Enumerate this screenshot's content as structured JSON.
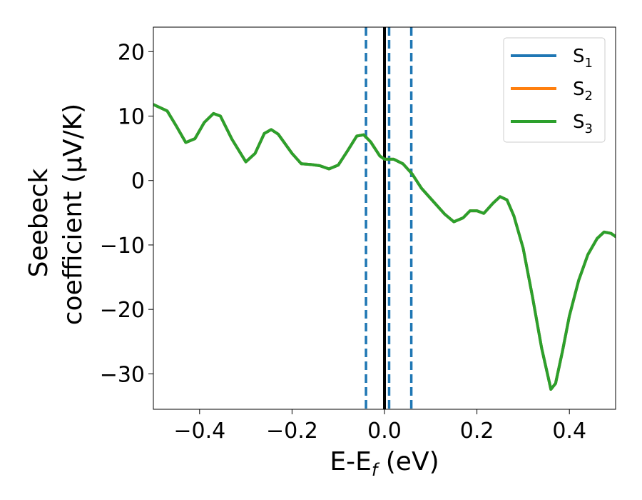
{
  "chart_data": {
    "type": "line",
    "title": "",
    "xlabel": {
      "main": "E-E",
      "sub": "f",
      "unit": " (eV)"
    },
    "ylabel": {
      "line1": "Seebeck",
      "line2": "coefficient  (μV/K)"
    },
    "xlim": [
      -0.5,
      0.5
    ],
    "ylim": [
      -35.5,
      23.8
    ],
    "xticks": [
      -0.4,
      -0.2,
      0.0,
      0.2,
      0.4
    ],
    "xtick_labels": [
      "−0.4",
      "−0.2",
      "0.0",
      "0.2",
      "0.4"
    ],
    "yticks": [
      20,
      10,
      0,
      -10,
      -20,
      -30
    ],
    "ytick_labels": [
      "20",
      "10",
      "0",
      "−10",
      "−20",
      "−30"
    ],
    "legend_position": "top-right",
    "grid": false,
    "series": [
      {
        "name": "S",
        "sub": "1",
        "color": "#1f77b4",
        "points": [
          [
            -0.5,
            11.8
          ],
          [
            -0.47,
            10.8
          ],
          [
            -0.45,
            8.4
          ],
          [
            -0.43,
            5.9
          ],
          [
            -0.41,
            6.5
          ],
          [
            -0.39,
            9.0
          ],
          [
            -0.37,
            10.4
          ],
          [
            -0.355,
            10.0
          ],
          [
            -0.33,
            6.4
          ],
          [
            -0.3,
            2.9
          ],
          [
            -0.28,
            4.2
          ],
          [
            -0.26,
            7.3
          ],
          [
            -0.245,
            7.9
          ],
          [
            -0.23,
            7.2
          ],
          [
            -0.2,
            4.2
          ],
          [
            -0.18,
            2.6
          ],
          [
            -0.16,
            2.5
          ],
          [
            -0.14,
            2.3
          ],
          [
            -0.12,
            1.8
          ],
          [
            -0.1,
            2.4
          ],
          [
            -0.08,
            4.6
          ],
          [
            -0.06,
            6.9
          ],
          [
            -0.045,
            7.1
          ],
          [
            -0.03,
            6.0
          ],
          [
            -0.01,
            3.8
          ],
          [
            0.0,
            3.3
          ],
          [
            0.02,
            3.3
          ],
          [
            0.04,
            2.6
          ],
          [
            0.06,
            1.0
          ],
          [
            0.08,
            -1.2
          ],
          [
            0.1,
            -2.8
          ],
          [
            0.13,
            -5.2
          ],
          [
            0.15,
            -6.4
          ],
          [
            0.17,
            -5.8
          ],
          [
            0.185,
            -4.7
          ],
          [
            0.2,
            -4.7
          ],
          [
            0.215,
            -5.1
          ],
          [
            0.235,
            -3.5
          ],
          [
            0.25,
            -2.5
          ],
          [
            0.265,
            -3.0
          ],
          [
            0.28,
            -5.5
          ],
          [
            0.3,
            -10.5
          ],
          [
            0.32,
            -18.0
          ],
          [
            0.34,
            -26.0
          ],
          [
            0.36,
            -32.4
          ],
          [
            0.37,
            -31.5
          ],
          [
            0.385,
            -26.5
          ],
          [
            0.4,
            -21.0
          ],
          [
            0.42,
            -15.5
          ],
          [
            0.44,
            -11.5
          ],
          [
            0.46,
            -9.0
          ],
          [
            0.475,
            -8.0
          ],
          [
            0.49,
            -8.2
          ],
          [
            0.5,
            -8.7
          ]
        ]
      },
      {
        "name": "S",
        "sub": "2",
        "color": "#ff7f0e",
        "points": [
          [
            -0.5,
            11.8
          ],
          [
            -0.47,
            10.8
          ],
          [
            -0.45,
            8.4
          ],
          [
            -0.43,
            5.9
          ],
          [
            -0.41,
            6.5
          ],
          [
            -0.39,
            9.0
          ],
          [
            -0.37,
            10.4
          ],
          [
            -0.355,
            10.0
          ],
          [
            -0.33,
            6.4
          ],
          [
            -0.3,
            2.9
          ],
          [
            -0.28,
            4.2
          ],
          [
            -0.26,
            7.3
          ],
          [
            -0.245,
            7.9
          ],
          [
            -0.23,
            7.2
          ],
          [
            -0.2,
            4.2
          ],
          [
            -0.18,
            2.6
          ],
          [
            -0.16,
            2.5
          ],
          [
            -0.14,
            2.3
          ],
          [
            -0.12,
            1.8
          ],
          [
            -0.1,
            2.4
          ],
          [
            -0.08,
            4.6
          ],
          [
            -0.06,
            6.9
          ],
          [
            -0.045,
            7.1
          ],
          [
            -0.03,
            6.0
          ],
          [
            -0.01,
            3.8
          ],
          [
            0.0,
            3.3
          ],
          [
            0.02,
            3.3
          ],
          [
            0.04,
            2.6
          ],
          [
            0.06,
            1.0
          ],
          [
            0.08,
            -1.2
          ],
          [
            0.1,
            -2.8
          ],
          [
            0.13,
            -5.2
          ],
          [
            0.15,
            -6.4
          ],
          [
            0.17,
            -5.8
          ],
          [
            0.185,
            -4.7
          ],
          [
            0.2,
            -4.7
          ],
          [
            0.215,
            -5.1
          ],
          [
            0.235,
            -3.5
          ],
          [
            0.25,
            -2.5
          ],
          [
            0.265,
            -3.0
          ],
          [
            0.28,
            -5.5
          ],
          [
            0.3,
            -10.5
          ],
          [
            0.32,
            -18.0
          ],
          [
            0.34,
            -26.0
          ],
          [
            0.36,
            -32.4
          ],
          [
            0.37,
            -31.5
          ],
          [
            0.385,
            -26.5
          ],
          [
            0.4,
            -21.0
          ],
          [
            0.42,
            -15.5
          ],
          [
            0.44,
            -11.5
          ],
          [
            0.46,
            -9.0
          ],
          [
            0.475,
            -8.0
          ],
          [
            0.49,
            -8.2
          ],
          [
            0.5,
            -8.7
          ]
        ]
      },
      {
        "name": "S",
        "sub": "3",
        "color": "#2ca02c",
        "points": [
          [
            -0.5,
            11.8
          ],
          [
            -0.47,
            10.8
          ],
          [
            -0.45,
            8.4
          ],
          [
            -0.43,
            5.9
          ],
          [
            -0.41,
            6.5
          ],
          [
            -0.39,
            9.0
          ],
          [
            -0.37,
            10.4
          ],
          [
            -0.355,
            10.0
          ],
          [
            -0.33,
            6.4
          ],
          [
            -0.3,
            2.9
          ],
          [
            -0.28,
            4.2
          ],
          [
            -0.26,
            7.3
          ],
          [
            -0.245,
            7.9
          ],
          [
            -0.23,
            7.2
          ],
          [
            -0.2,
            4.2
          ],
          [
            -0.18,
            2.6
          ],
          [
            -0.16,
            2.5
          ],
          [
            -0.14,
            2.3
          ],
          [
            -0.12,
            1.8
          ],
          [
            -0.1,
            2.4
          ],
          [
            -0.08,
            4.6
          ],
          [
            -0.06,
            6.9
          ],
          [
            -0.045,
            7.1
          ],
          [
            -0.03,
            6.0
          ],
          [
            -0.01,
            3.8
          ],
          [
            0.0,
            3.3
          ],
          [
            0.02,
            3.3
          ],
          [
            0.04,
            2.6
          ],
          [
            0.06,
            1.0
          ],
          [
            0.08,
            -1.2
          ],
          [
            0.1,
            -2.8
          ],
          [
            0.13,
            -5.2
          ],
          [
            0.15,
            -6.4
          ],
          [
            0.17,
            -5.8
          ],
          [
            0.185,
            -4.7
          ],
          [
            0.2,
            -4.7
          ],
          [
            0.215,
            -5.1
          ],
          [
            0.235,
            -3.5
          ],
          [
            0.25,
            -2.5
          ],
          [
            0.265,
            -3.0
          ],
          [
            0.28,
            -5.5
          ],
          [
            0.3,
            -10.5
          ],
          [
            0.32,
            -18.0
          ],
          [
            0.34,
            -26.0
          ],
          [
            0.36,
            -32.4
          ],
          [
            0.37,
            -31.5
          ],
          [
            0.385,
            -26.5
          ],
          [
            0.4,
            -21.0
          ],
          [
            0.42,
            -15.5
          ],
          [
            0.44,
            -11.5
          ],
          [
            0.46,
            -9.0
          ],
          [
            0.475,
            -8.0
          ],
          [
            0.49,
            -8.2
          ],
          [
            0.5,
            -8.7
          ]
        ]
      }
    ],
    "vertical_lines": [
      {
        "x": 0.0,
        "style": "solid",
        "color": "#000000"
      },
      {
        "x": -0.04,
        "style": "dashed",
        "color": "#1f77b4"
      },
      {
        "x": 0.01,
        "style": "dashed",
        "color": "#1f77b4"
      },
      {
        "x": 0.058,
        "style": "dashed",
        "color": "#1f77b4"
      }
    ]
  }
}
